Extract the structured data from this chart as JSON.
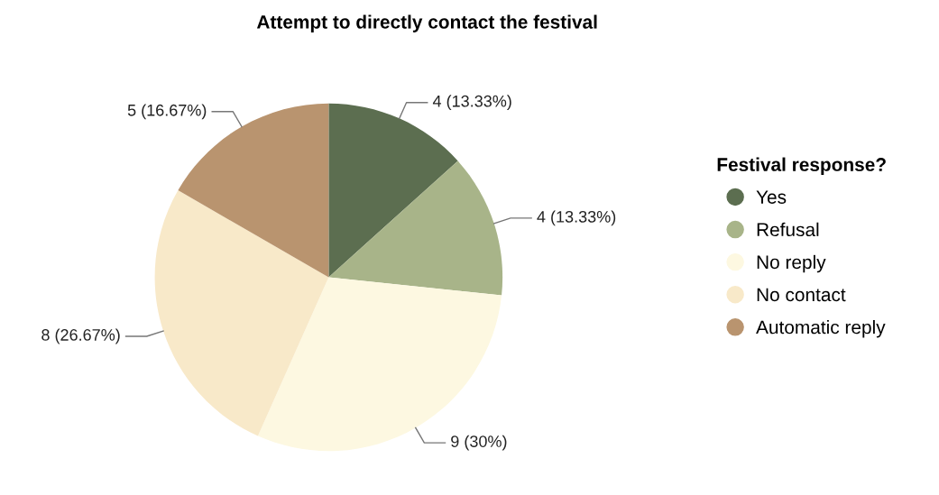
{
  "chart_data": {
    "type": "pie",
    "title": "Attempt to directly contact the festival",
    "legend_title": "Festival response?",
    "legend": "right",
    "categories": [
      "Yes",
      "Refusal",
      "No reply",
      "No contact",
      "Automatic reply"
    ],
    "values": [
      4,
      4,
      9,
      8,
      5
    ],
    "value_labels": [
      "4 (13.33%)",
      "4 (13.33%)",
      "9 (30%)",
      "8 (26.67%)",
      "5 (16.67%)"
    ],
    "colors": [
      "#5c6e50",
      "#a8b489",
      "#fdf8e1",
      "#f8e9c9",
      "#b9946f"
    ]
  }
}
